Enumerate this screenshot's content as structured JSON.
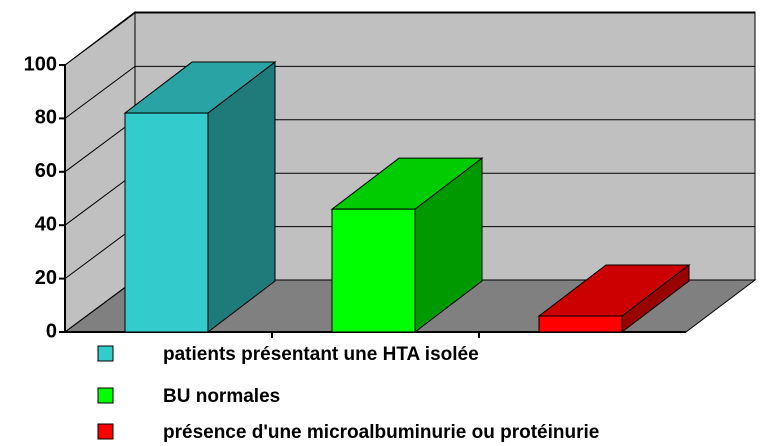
{
  "chart_data": {
    "type": "bar3d",
    "categories": [
      "patients présentant une HTA isolée",
      "BU normales",
      "présence d'une microalbuminurie ou protéinurie"
    ],
    "values": [
      82,
      46,
      6
    ],
    "colors": [
      "#33cccc",
      "#00ff00",
      "#ff0000"
    ],
    "ylim": [
      0,
      100
    ],
    "yticks": [
      0,
      20,
      40,
      60,
      80,
      100
    ],
    "grid": true
  }
}
